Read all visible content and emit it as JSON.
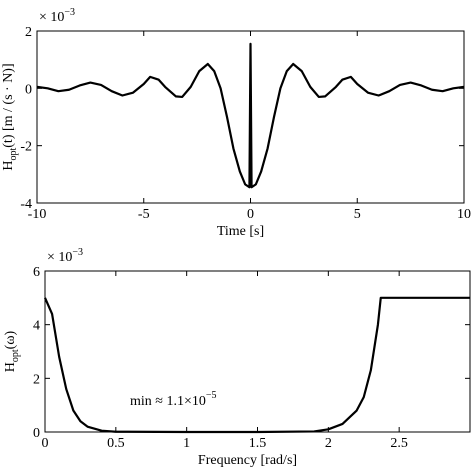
{
  "chart_data": [
    {
      "type": "line",
      "multiplier": "× 10",
      "multiplier_exponent": "−3",
      "ylabel": "H",
      "ylabel_sub": "opt",
      "ylabel_rest": "(t) [m / (s · N)]",
      "xlabel": "Time [s]",
      "xlim": [
        -10,
        10
      ],
      "xticks": [
        -10,
        -5,
        0,
        5,
        10
      ],
      "ylim": [
        -4,
        2
      ],
      "yticks": [
        -4,
        -2,
        0,
        2
      ],
      "x": [
        -10,
        -9.5,
        -9,
        -8.5,
        -8,
        -7.5,
        -7,
        -6.5,
        -6,
        -5.5,
        -5,
        -4.7,
        -4.3,
        -4,
        -3.5,
        -3.2,
        -2.8,
        -2.4,
        -2,
        -1.7,
        -1.4,
        -1.1,
        -0.8,
        -0.5,
        -0.25,
        -0.05,
        0,
        0.05,
        0.25,
        0.5,
        0.8,
        1.1,
        1.4,
        1.7,
        2,
        2.4,
        2.8,
        3.2,
        3.5,
        4,
        4.3,
        4.7,
        5,
        5.5,
        6,
        6.5,
        7,
        7.5,
        8,
        8.5,
        9,
        9.5,
        10
      ],
      "series": [
        {
          "color": "#000000",
          "values": [
            0.05,
            0,
            -0.1,
            -0.05,
            0.1,
            0.2,
            0.12,
            -0.1,
            -0.25,
            -0.15,
            0.15,
            0.4,
            0.3,
            0.05,
            -0.28,
            -0.3,
            0.05,
            0.6,
            0.85,
            0.6,
            0,
            -1,
            -2.1,
            -2.9,
            -3.35,
            -3.45,
            1.55,
            -3.45,
            -3.35,
            -2.9,
            -2.1,
            -1,
            0,
            0.6,
            0.85,
            0.6,
            0.05,
            -0.3,
            -0.28,
            0.05,
            0.3,
            0.4,
            0.15,
            -0.15,
            -0.25,
            -0.1,
            0.12,
            0.2,
            0.1,
            -0.05,
            -0.1,
            0,
            0.05
          ]
        }
      ]
    },
    {
      "type": "line",
      "multiplier": "× 10",
      "multiplier_exponent": "−3",
      "ylabel": "H",
      "ylabel_sub": "opt",
      "ylabel_rest": "(ω)",
      "xlabel": "Frequency [rad/s]",
      "annotation": "min ≈ 1.1×10",
      "annotation_exponent": "−5",
      "xlim": [
        0,
        3
      ],
      "xticks": [
        0,
        0.5,
        1,
        1.5,
        2,
        2.5
      ],
      "ylim": [
        0,
        6
      ],
      "yticks": [
        0,
        2,
        4,
        6
      ],
      "x": [
        0,
        0.05,
        0.1,
        0.15,
        0.2,
        0.25,
        0.3,
        0.4,
        0.5,
        1,
        1.5,
        1.9,
        2,
        2.1,
        2.2,
        2.25,
        2.3,
        2.35,
        2.37,
        3
      ],
      "series": [
        {
          "color": "#000000",
          "values": [
            5,
            4.4,
            2.8,
            1.6,
            0.8,
            0.4,
            0.2,
            0.05,
            0.01,
            0,
            0,
            0.02,
            0.1,
            0.3,
            0.8,
            1.3,
            2.3,
            4,
            5,
            5
          ]
        }
      ]
    }
  ]
}
